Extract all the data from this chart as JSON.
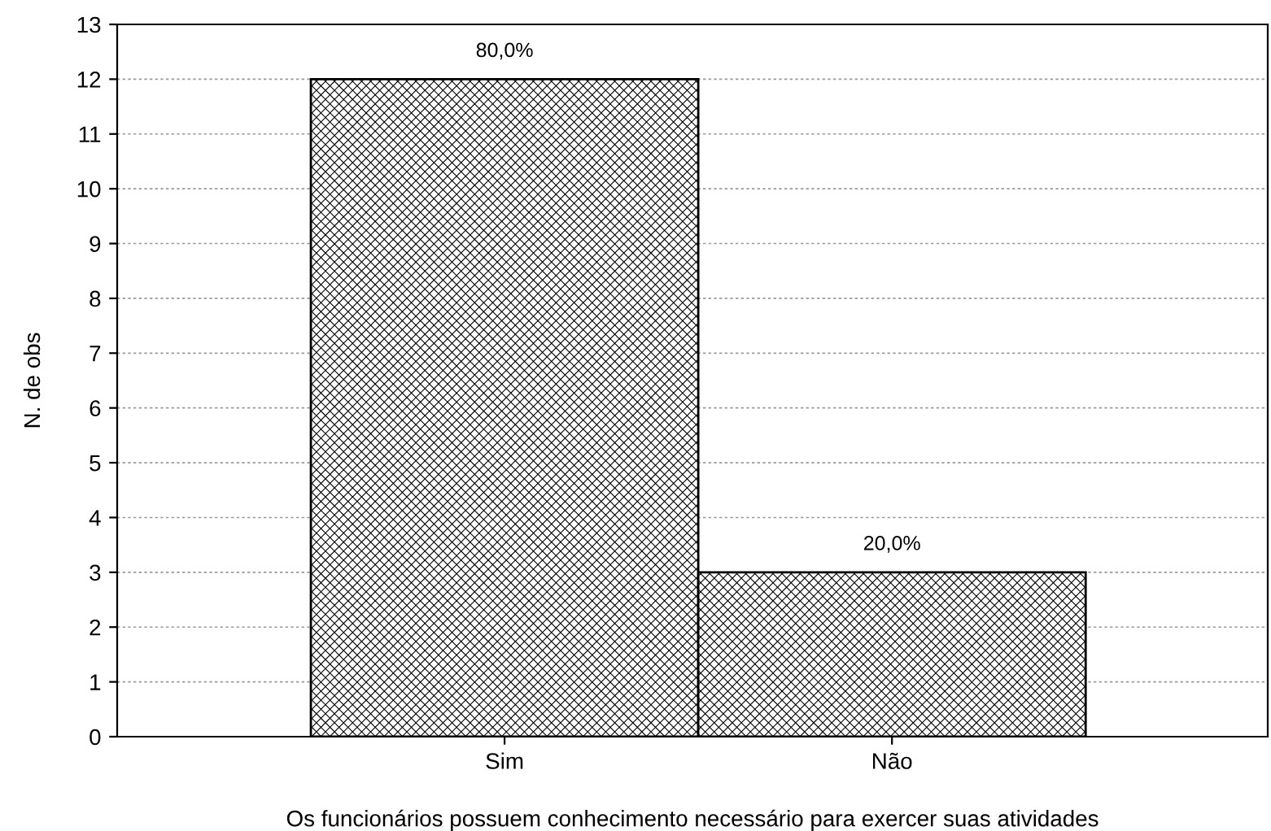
{
  "chart_data": {
    "type": "bar",
    "xlabel": "Os funcionários possuem conhecimento necessário para exercer suas atividades",
    "ylabel": "N. de obs",
    "categories": [
      "Sim",
      "Não"
    ],
    "values": [
      12,
      3
    ],
    "annotations": [
      {
        "text": "80,0%",
        "x": "Sim",
        "y": 12
      },
      {
        "text": "20,0%",
        "x": "Não",
        "y": 3
      }
    ],
    "color": "#000000",
    "ylim": [
      0,
      13
    ],
    "yticks": [
      0,
      1,
      2,
      3,
      4,
      5,
      6,
      7,
      8,
      9,
      10,
      11,
      12,
      13
    ],
    "grid": "y"
  }
}
